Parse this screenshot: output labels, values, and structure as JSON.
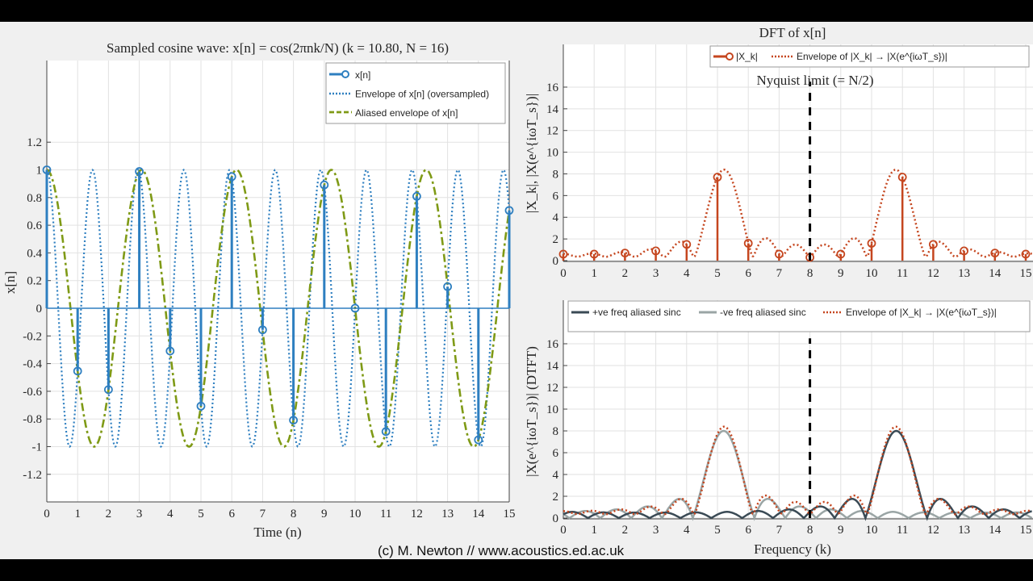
{
  "watermark": "(c) M. Newton // www.acoustics.ed.ac.uk",
  "colors": {
    "blue": "#2e7fc0",
    "olive": "#7f9a16",
    "orange": "#c5461f",
    "dark": "#3a4a55",
    "grey": "#9aa5a5",
    "grid": "#e2e2e2"
  },
  "chart_data": [
    {
      "type": "line",
      "title": "Sampled cosine wave: x[n] = cos(2πnk/N) (k = 10.80, N = 16)",
      "xlabel": "Time (n)",
      "ylabel": "x[n]",
      "xlim": [
        0,
        15
      ],
      "ylim": [
        -1.4,
        1.8
      ],
      "xticks": [
        "0",
        "1",
        "2",
        "3",
        "4",
        "5",
        "6",
        "7",
        "8",
        "9",
        "10",
        "11",
        "12",
        "13",
        "14",
        "15"
      ],
      "yticks": [
        "-1.2",
        "-1",
        "-0.8",
        "-0.6",
        "-0.4",
        "-0.2",
        "0",
        "0.2",
        "0.4",
        "0.6",
        "0.8",
        "1",
        "1.2"
      ],
      "k": 10.8,
      "N": 16,
      "aliased_k": 5.2,
      "n": [
        0,
        1,
        2,
        3,
        4,
        5,
        6,
        7,
        8,
        9,
        10,
        11,
        12,
        13,
        14,
        15
      ],
      "x": [
        1,
        -0.454,
        -0.588,
        0.988,
        -0.309,
        -0.707,
        0.951,
        -0.156,
        -0.809,
        0.891,
        0,
        -0.891,
        0.809,
        0.156,
        -0.951,
        0.707
      ],
      "legend": [
        "x[n]",
        "Envelope of x[n] (oversampled)",
        "Aliased envelope of x[n]"
      ],
      "legend_position": "top-right",
      "grid": true
    },
    {
      "type": "line",
      "title": "DFT of x[n]",
      "ylabel": "|X_k|, |X(e^{iωT_s})|",
      "xlim": [
        0,
        15
      ],
      "ylim": [
        0,
        20
      ],
      "xticks": [
        "0",
        "1",
        "2",
        "3",
        "4",
        "5",
        "6",
        "7",
        "8",
        "9",
        "10",
        "11",
        "12",
        "13",
        "14",
        "15"
      ],
      "yticks": [
        "0",
        "2",
        "4",
        "6",
        "8",
        "10",
        "12",
        "14",
        "16"
      ],
      "k": [
        0,
        1,
        2,
        3,
        4,
        5,
        6,
        7,
        8,
        9,
        10,
        11,
        12,
        13,
        14,
        15
      ],
      "Xk": [
        0.6,
        0.6,
        0.7,
        0.9,
        1.5,
        7.7,
        1.6,
        0.6,
        0.3,
        0.6,
        1.6,
        7.7,
        1.5,
        0.9,
        0.7,
        0.6
      ],
      "legend": [
        "|X_k|",
        "Envelope of |X_k| → |X(e^{iωT_s})|"
      ],
      "annotation": "Nyquist limit (= N/2)",
      "nyquist": 8,
      "legend_position": "top-right",
      "grid": true
    },
    {
      "type": "line",
      "xlabel": "Frequency (k)",
      "ylabel": "|X(e^{iωT_s})| (DTFT)",
      "xlim": [
        0,
        15
      ],
      "ylim": [
        0,
        20
      ],
      "xticks": [
        "0",
        "1",
        "2",
        "3",
        "4",
        "5",
        "6",
        "7",
        "8",
        "9",
        "10",
        "11",
        "12",
        "13",
        "14",
        "15"
      ],
      "yticks": [
        "0",
        "2",
        "4",
        "6",
        "8",
        "10",
        "12",
        "14",
        "16"
      ],
      "legend": [
        "+ve freq aliased sinc",
        "-ve freq aliased sinc",
        "Envelope of |X_k| → |X(e^{iωT_s})|"
      ],
      "nyquist": 8,
      "legend_position": "top",
      "grid": true
    }
  ]
}
